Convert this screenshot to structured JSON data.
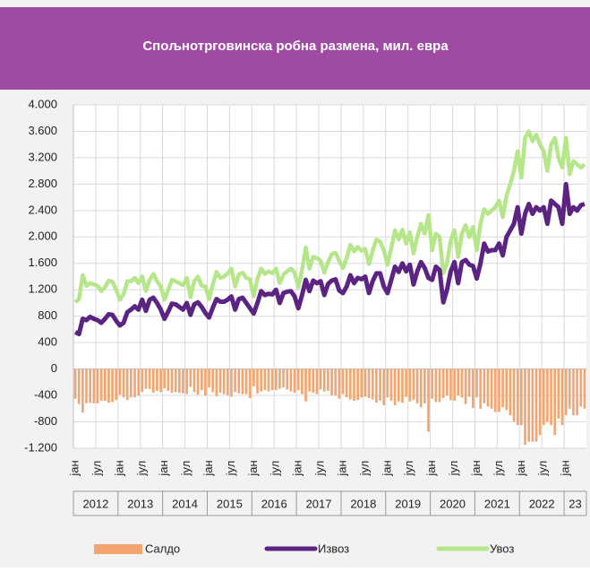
{
  "chart_data": {
    "type": "combo",
    "title": "Спољнотрговинска робна размена, мил. евра",
    "categories": [
      "јан",
      null,
      null,
      null,
      null,
      null,
      "јул",
      null,
      null,
      null,
      null,
      null,
      "јан",
      null,
      null,
      null,
      null,
      null,
      "јул",
      null,
      null,
      null,
      null,
      null,
      "јан",
      null,
      null,
      null,
      null,
      null,
      "јул",
      null,
      null,
      null,
      null,
      null,
      "јан",
      null,
      null,
      null,
      null,
      null,
      "јул",
      null,
      null,
      null,
      null,
      null,
      "јан",
      null,
      null,
      null,
      null,
      null,
      "јул",
      null,
      null,
      null,
      null,
      null,
      "јан",
      null,
      null,
      null,
      null,
      null,
      "јул",
      null,
      null,
      null,
      null,
      null,
      "јан",
      null,
      null,
      null,
      null,
      null,
      "јул",
      null,
      null,
      null,
      null,
      null,
      "јан",
      null,
      null,
      null,
      null,
      null,
      "јул",
      null,
      null,
      null,
      null,
      null,
      "јан",
      null,
      null,
      null,
      null,
      null,
      "јул",
      null,
      null,
      null,
      null,
      null,
      "јан",
      null,
      null,
      null,
      null,
      null,
      "јул",
      null,
      null,
      null,
      null,
      null,
      "јан",
      null,
      null,
      null,
      null,
      null,
      "јул",
      null,
      null,
      null,
      null,
      null,
      "јан",
      null,
      null,
      null,
      null,
      null
    ],
    "years": [
      "2012",
      "2013",
      "2014",
      "2015",
      "2016",
      "2017",
      "2018",
      "2019",
      "2020",
      "2021",
      "2022",
      "23"
    ],
    "series": [
      {
        "name": "Салдо",
        "kind": "bar",
        "color": "#f4a46e",
        "values": [
          -450,
          -530,
          -660,
          -520,
          -510,
          -520,
          -520,
          -480,
          -480,
          -510,
          -500,
          -470,
          -390,
          -430,
          -470,
          -430,
          -430,
          -400,
          -350,
          -300,
          -300,
          -360,
          -330,
          -350,
          -290,
          -330,
          -360,
          -350,
          -360,
          -370,
          -380,
          -270,
          -350,
          -390,
          -320,
          -400,
          -280,
          -350,
          -410,
          -360,
          -380,
          -400,
          -420,
          -350,
          -370,
          -380,
          -380,
          -440,
          -260,
          -370,
          -340,
          -320,
          -340,
          -320,
          -320,
          -300,
          -280,
          -310,
          -340,
          -360,
          -320,
          -380,
          -490,
          -340,
          -360,
          -380,
          -310,
          -340,
          -330,
          -400,
          -400,
          -450,
          -380,
          -430,
          -460,
          -480,
          -470,
          -430,
          -420,
          -440,
          -460,
          -510,
          -480,
          -550,
          -430,
          -480,
          -550,
          -490,
          -510,
          -420,
          -490,
          -470,
          -520,
          -580,
          -520,
          -950,
          -450,
          -500,
          -500,
          -440,
          -400,
          -470,
          -480,
          -400,
          -430,
          -530,
          -420,
          -590,
          -430,
          -600,
          -520,
          -570,
          -600,
          -650,
          -650,
          -580,
          -620,
          -700,
          -800,
          -850,
          -850,
          -1150,
          -1100,
          -1100,
          -1100,
          -1000,
          -850,
          -800,
          -850,
          -1000,
          -750,
          -850,
          -700,
          -600,
          -700,
          -700,
          -570,
          -600
        ]
      },
      {
        "name": "Извоз",
        "kind": "line",
        "color": "#5b2483",
        "values": [
          560,
          530,
          760,
          740,
          790,
          760,
          740,
          700,
          760,
          830,
          820,
          730,
          660,
          700,
          860,
          900,
          950,
          900,
          1050,
          880,
          1050,
          1080,
          1000,
          900,
          760,
          870,
          990,
          980,
          940,
          900,
          1000,
          820,
          980,
          1010,
          940,
          850,
          780,
          930,
          1060,
          1020,
          1020,
          1050,
          1100,
          900,
          1060,
          1080,
          1000,
          920,
          840,
          1000,
          1180,
          1120,
          1140,
          1130,
          1200,
          1000,
          1150,
          1170,
          1180,
          1100,
          920,
          1120,
          1350,
          1180,
          1340,
          1300,
          1330,
          1120,
          1290,
          1340,
          1360,
          1190,
          1150,
          1250,
          1420,
          1300,
          1380,
          1360,
          1400,
          1150,
          1330,
          1450,
          1450,
          1250,
          1150,
          1350,
          1550,
          1470,
          1600,
          1480,
          1580,
          1280,
          1480,
          1620,
          1530,
          1380,
          1350,
          1550,
          1500,
          1010,
          1200,
          1480,
          1620,
          1300,
          1620,
          1650,
          1580,
          1560,
          1370,
          1600,
          1900,
          1780,
          1800,
          1800,
          1900,
          1720,
          2000,
          2100,
          2200,
          2450,
          2050,
          2350,
          2500,
          2350,
          2450,
          2400,
          2450,
          2200,
          2550,
          2500,
          2450,
          2200,
          2800,
          2350,
          2450,
          2400,
          2480,
          2500
        ]
      },
      {
        "name": "Увоз",
        "kind": "line",
        "color": "#b5e68a",
        "values": [
          1010,
          1060,
          1420,
          1260,
          1300,
          1280,
          1260,
          1180,
          1240,
          1340,
          1320,
          1200,
          1050,
          1130,
          1330,
          1330,
          1380,
          1300,
          1400,
          1180,
          1350,
          1440,
          1330,
          1250,
          1050,
          1200,
          1350,
          1330,
          1300,
          1270,
          1380,
          1090,
          1330,
          1400,
          1260,
          1250,
          1060,
          1280,
          1470,
          1380,
          1400,
          1450,
          1520,
          1250,
          1430,
          1460,
          1380,
          1360,
          1100,
          1370,
          1520,
          1440,
          1480,
          1450,
          1520,
          1300,
          1430,
          1480,
          1520,
          1460,
          1240,
          1500,
          1840,
          1520,
          1700,
          1680,
          1640,
          1460,
          1620,
          1740,
          1760,
          1640,
          1530,
          1680,
          1880,
          1780,
          1850,
          1790,
          1820,
          1590,
          1790,
          1960,
          1930,
          1800,
          1580,
          1830,
          2100,
          1960,
          2110,
          1900,
          2070,
          1750,
          2000,
          2200,
          2050,
          2330,
          1800,
          2050,
          2000,
          1450,
          1600,
          1950,
          2100,
          1700,
          2050,
          2180,
          2000,
          2150,
          1800,
          2200,
          2420,
          2350,
          2400,
          2450,
          2550,
          2300,
          2620,
          2800,
          3000,
          3300,
          2900,
          3500,
          3600,
          3450,
          3550,
          3400,
          3300,
          3000,
          3400,
          3500,
          3200,
          3050,
          3500,
          2950,
          3150,
          3100,
          3050,
          3100
        ]
      }
    ],
    "ylim": [
      -1200,
      4000
    ],
    "yticks": [
      {
        "value": 4000,
        "label": "4.000"
      },
      {
        "value": 3600,
        "label": "3.600"
      },
      {
        "value": 3200,
        "label": "3.200"
      },
      {
        "value": 2800,
        "label": "2.800"
      },
      {
        "value": 2400,
        "label": "2.400"
      },
      {
        "value": 2000,
        "label": "2.000"
      },
      {
        "value": 1600,
        "label": "1.600"
      },
      {
        "value": 1200,
        "label": "1.200"
      },
      800,
      400,
      0,
      -400,
      -800,
      {
        "value": -1200,
        "label": "-1.200"
      }
    ],
    "grid": true
  }
}
